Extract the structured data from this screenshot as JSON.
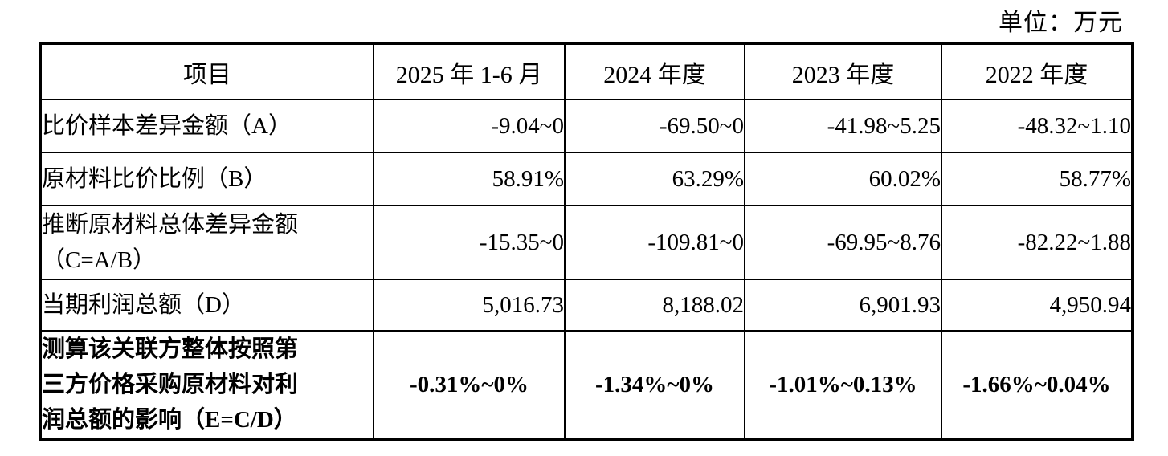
{
  "unit_label": "单位：万元",
  "table": {
    "headers": [
      "项目",
      "2025 年 1-6 月",
      "2024 年度",
      "2023 年度",
      "2022 年度"
    ],
    "rows": [
      {
        "label": "比价样本差异金额（A）",
        "values": [
          "-9.04~0",
          "-69.50~0",
          "-41.98~5.25",
          "-48.32~1.10"
        ]
      },
      {
        "label": "原材料比价比例（B）",
        "values": [
          "58.91%",
          "63.29%",
          "60.02%",
          "58.77%"
        ]
      },
      {
        "label": "推断原材料总体差异金额\n（C=A/B）",
        "values": [
          "-15.35~0",
          "-109.81~0",
          "-69.95~8.76",
          "-82.22~1.88"
        ]
      },
      {
        "label": "当期利润总额（D）",
        "values": [
          "5,016.73",
          "8,188.02",
          "6,901.93",
          "4,950.94"
        ]
      },
      {
        "label": "测算该关联方整体按照第\n三方价格采购原材料对利\n润总额的影响（E=C/D）",
        "values": [
          "-0.31%~0%",
          "-1.34%~0%",
          "-1.01%~0.13%",
          "-1.66%~0.04%"
        ]
      }
    ]
  }
}
